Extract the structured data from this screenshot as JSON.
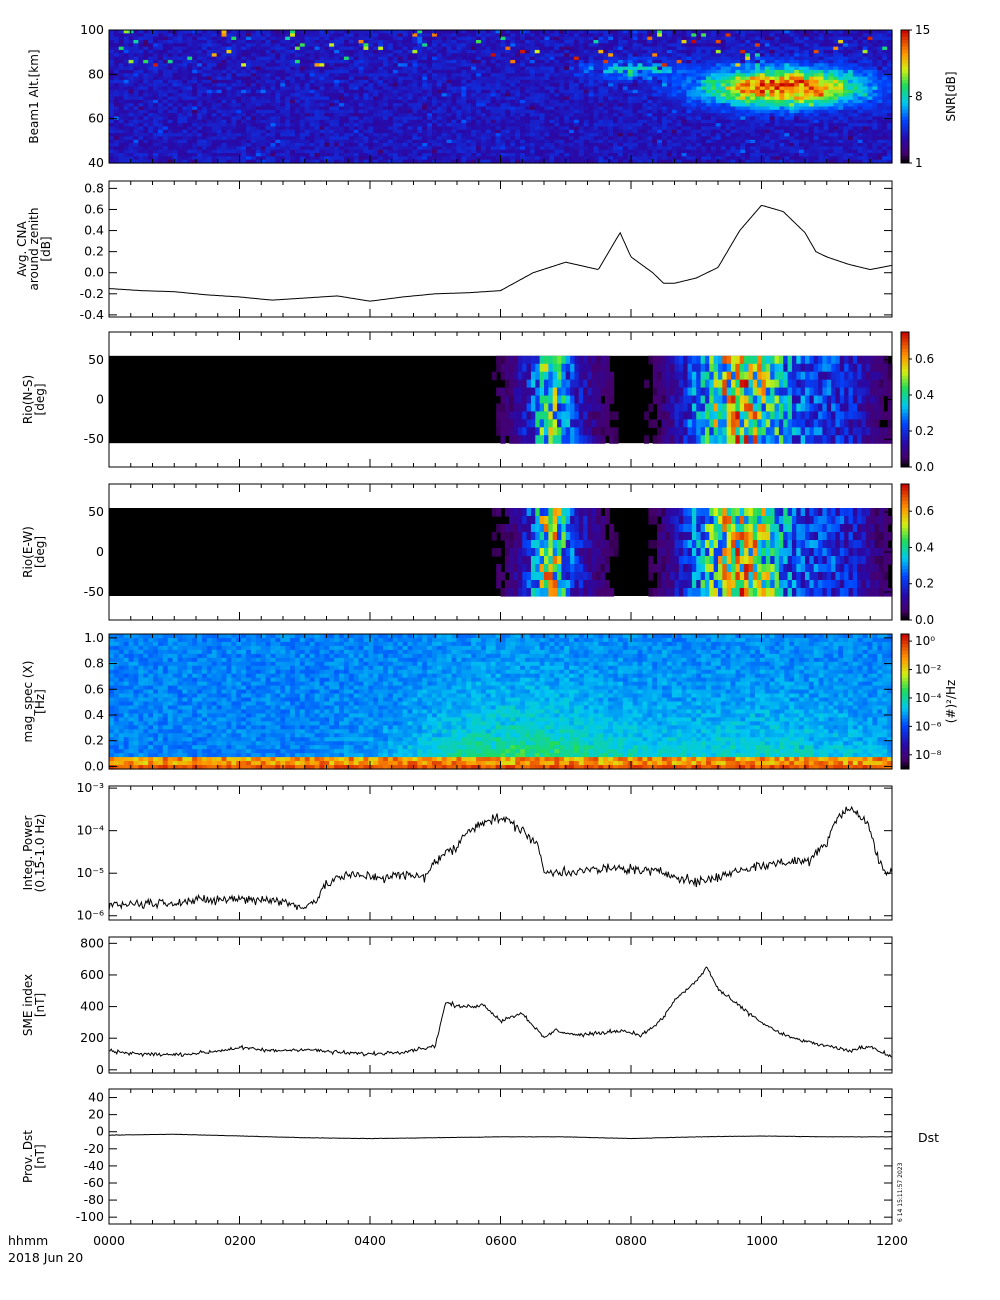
{
  "time_axis": {
    "row_label": "hhmm",
    "date_label": "2018 Jun 20",
    "tick_labels": [
      "0000",
      "0200",
      "0400",
      "0600",
      "0800",
      "1000",
      "1200"
    ]
  },
  "stamp": {
    "side_label": "Dst",
    "vertical_text": "6 14 15:11:57 2023"
  },
  "chart_data": [
    {
      "type": "heatmap",
      "ylabel": "Beam1 Alt.[km]",
      "y_ticks": [
        "40",
        "60",
        "80",
        "100"
      ],
      "ylim": [
        40,
        100
      ],
      "xlim": [
        0,
        720
      ],
      "colorbar": {
        "label": "SNR[dB]",
        "ticks": [
          "1",
          "8",
          "15"
        ],
        "range": [
          1,
          15
        ],
        "colormap": "jet-dark"
      },
      "colors": {
        "background": "#2e1a8f",
        "low": "#3a1a7a",
        "high": "#d01010"
      }
    },
    {
      "type": "line",
      "ylabel": "Avg. CNA around zenith [dB]",
      "ylabel_lines": [
        "Avg. CNA",
        "around zenith",
        "[dB]"
      ],
      "y_ticks": [
        "-0.4",
        "-0.2",
        "0.0",
        "0.2",
        "0.4",
        "0.6",
        "0.8"
      ],
      "ylim": [
        -0.42,
        0.87
      ],
      "xlim": [
        0,
        720
      ],
      "x": [
        0,
        30,
        60,
        90,
        120,
        150,
        180,
        210,
        240,
        270,
        300,
        330,
        360,
        390,
        420,
        450,
        470,
        480,
        500,
        510,
        520,
        540,
        560,
        580,
        600,
        620,
        640,
        650,
        660,
        680,
        700,
        720
      ],
      "values": [
        -0.15,
        -0.17,
        -0.18,
        -0.21,
        -0.23,
        -0.26,
        -0.24,
        -0.22,
        -0.27,
        -0.23,
        -0.2,
        -0.19,
        -0.17,
        0.0,
        0.1,
        0.03,
        0.38,
        0.15,
        0.0,
        -0.1,
        -0.1,
        -0.05,
        0.05,
        0.4,
        0.64,
        0.58,
        0.38,
        0.2,
        0.15,
        0.08,
        0.03,
        0.07
      ],
      "grid": false
    },
    {
      "type": "heatmap",
      "ylabel": "Rio(N-S) [deg]",
      "ylabel_lines": [
        "Rio(N-S)",
        "[deg]"
      ],
      "y_ticks": [
        "-50",
        "0",
        "50"
      ],
      "ylim": [
        -85,
        85
      ],
      "xlim": [
        0,
        720
      ],
      "colorbar": {
        "label": "",
        "ticks": [
          "0.0",
          "0.2",
          "0.4",
          "0.6"
        ],
        "range": [
          0,
          0.75
        ],
        "colormap": "rainbow-dark"
      },
      "colors": {
        "background": "#000000",
        "mid": "#2aa0ff",
        "high": "#c80000"
      }
    },
    {
      "type": "heatmap",
      "ylabel": "Rio(E-W) [deg]",
      "ylabel_lines": [
        "Rio(E-W)",
        "[deg]"
      ],
      "y_ticks": [
        "-50",
        "0",
        "50"
      ],
      "ylim": [
        -85,
        85
      ],
      "xlim": [
        0,
        720
      ],
      "colorbar": {
        "label": "",
        "ticks": [
          "0.0",
          "0.2",
          "0.4",
          "0.6"
        ],
        "range": [
          0,
          0.75
        ],
        "colormap": "rainbow-dark"
      },
      "colors": {
        "background": "#000000",
        "mid": "#2aa0ff",
        "high": "#c80000"
      }
    },
    {
      "type": "heatmap",
      "ylabel": "mag_spec (X) [Hz]",
      "ylabel_lines": [
        "mag_spec (X)",
        "[Hz]"
      ],
      "y_ticks": [
        "0.0",
        "0.2",
        "0.4",
        "0.6",
        "0.8",
        "1.0"
      ],
      "ylim": [
        -0.02,
        1.03
      ],
      "xlim": [
        0,
        720
      ],
      "colorbar": {
        "label": "(#)²/Hz",
        "ticks": [
          "10⁰",
          "10⁻²",
          "10⁻⁴",
          "10⁻⁶",
          "10⁻⁸"
        ],
        "range": [
          -9,
          0.5
        ],
        "scale": "log",
        "colormap": "rainbow-dark"
      },
      "colors": {
        "background": "#1e6cf0",
        "mid": "#22d070",
        "high": "#ff3000"
      }
    },
    {
      "type": "line",
      "ylabel": "Integ. Power (0.15-1.0 Hz)",
      "ylabel_lines": [
        "Integ. Power",
        "(0.15-1.0 Hz)"
      ],
      "y_ticks": [
        "10⁻⁶",
        "10⁻⁵",
        "10⁻⁴",
        "10⁻³"
      ],
      "ylim": [
        -6.1,
        -2.95
      ],
      "yscale": "log",
      "xlim": [
        0,
        720
      ],
      "x": [
        0,
        60,
        90,
        120,
        150,
        175,
        190,
        210,
        230,
        250,
        270,
        290,
        320,
        340,
        360,
        380,
        390,
        400,
        420,
        450,
        470,
        500,
        520,
        540,
        560,
        580,
        620,
        645,
        660,
        680,
        700,
        705,
        710,
        715,
        720
      ],
      "values": [
        1.8e-06,
        2.1e-06,
        2.3e-06,
        2.5e-06,
        2.4e-06,
        1.6e-06,
        2.2e-06,
        8e-06,
        9e-06,
        8e-06,
        9e-06,
        8e-06,
        4e-05,
        0.00015,
        0.0002,
        0.0001,
        6e-05,
        1e-05,
        1.1e-05,
        1.2e-05,
        1.3e-05,
        1.1e-05,
        9e-06,
        6e-06,
        8e-06,
        1.2e-05,
        1.8e-05,
        2e-05,
        5e-05,
        0.00035,
        0.0001,
        3e-05,
        1.5e-05,
        9e-06,
        1.2e-05
      ],
      "grid": false
    },
    {
      "type": "line",
      "ylabel": "SME index [nT]",
      "ylabel_lines": [
        "SME index",
        "[nT]"
      ],
      "y_ticks": [
        "0",
        "200",
        "400",
        "600",
        "800"
      ],
      "ylim": [
        -20,
        840
      ],
      "xlim": [
        0,
        720
      ],
      "x": [
        0,
        30,
        60,
        90,
        120,
        150,
        180,
        210,
        240,
        270,
        300,
        305,
        310,
        320,
        330,
        345,
        360,
        380,
        400,
        410,
        430,
        450,
        470,
        490,
        500,
        510,
        520,
        540,
        550,
        560,
        580,
        600,
        620,
        640,
        660,
        680,
        700,
        720
      ],
      "values": [
        120,
        100,
        95,
        110,
        140,
        120,
        130,
        110,
        100,
        115,
        150,
        300,
        430,
        400,
        400,
        410,
        310,
        360,
        200,
        250,
        220,
        230,
        250,
        220,
        270,
        330,
        440,
        560,
        650,
        510,
        400,
        300,
        220,
        180,
        150,
        120,
        150,
        80
      ],
      "grid": false
    },
    {
      "type": "line",
      "ylabel": "Prov. Dst [nT]",
      "ylabel_lines": [
        "Prov. Dst",
        "[nT]"
      ],
      "y_ticks": [
        "-100",
        "-80",
        "-60",
        "-40",
        "-20",
        "0",
        "20",
        "40"
      ],
      "ylim": [
        -108,
        50
      ],
      "xlim": [
        0,
        720
      ],
      "x": [
        0,
        60,
        120,
        180,
        240,
        300,
        360,
        420,
        480,
        540,
        600,
        660,
        720
      ],
      "values": [
        -4,
        -3,
        -5,
        -7,
        -8,
        -7,
        -6,
        -6,
        -8,
        -6,
        -5,
        -6,
        -6
      ],
      "grid": false
    }
  ]
}
